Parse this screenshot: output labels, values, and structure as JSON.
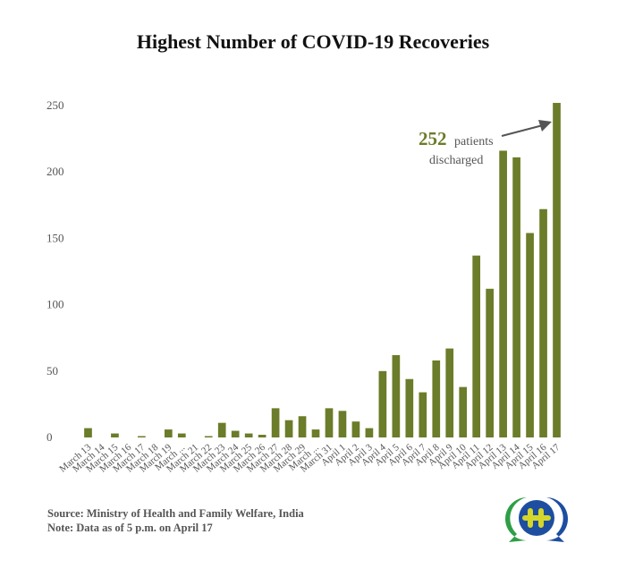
{
  "chart_data": {
    "type": "bar",
    "title": "Highest Number of COVID-19 Recoveries",
    "categories": [
      "March 13",
      "March 14",
      "March 15",
      "March 16",
      "March 17",
      "March 18",
      "March 19",
      "March ...",
      "March 21",
      "March 22",
      "March 23",
      "March 24",
      "March 25",
      "March 26",
      "March 27",
      "March 28",
      "March 29",
      "March ...",
      "March 31",
      "April 1",
      "April 2",
      "April 3",
      "April 4",
      "April 5",
      "April 6",
      "April 7",
      "April 8",
      "April 9",
      "April 10",
      "April 11",
      "April 12",
      "April 13",
      "April 14",
      "April 15",
      "April 16",
      "April 17"
    ],
    "values": [
      7,
      0,
      3,
      0,
      1,
      0,
      6,
      3,
      0,
      1,
      11,
      5,
      3,
      2,
      22,
      13,
      16,
      6,
      22,
      20,
      12,
      7,
      50,
      62,
      44,
      34,
      58,
      67,
      38,
      137,
      112,
      216,
      211,
      154,
      172,
      252
    ],
    "yticks": [
      0,
      50,
      100,
      150,
      200,
      250
    ],
    "ylim": [
      0,
      252
    ],
    "xlabel": "",
    "ylabel": "",
    "grid": false,
    "bar_color": "#6b7c2a",
    "annotation": {
      "number": "252",
      "line1": "patients",
      "line2": "discharged"
    }
  },
  "footer": {
    "source": "Source: Ministry of Health and Family Welfare, India",
    "note": "Note: Data as of 5 p.m. on April 17"
  },
  "logo": {
    "icon": "plus-chat-bubble-logo",
    "colors": [
      "#2e9e47",
      "#1d4ea0",
      "#d4d62a"
    ]
  }
}
